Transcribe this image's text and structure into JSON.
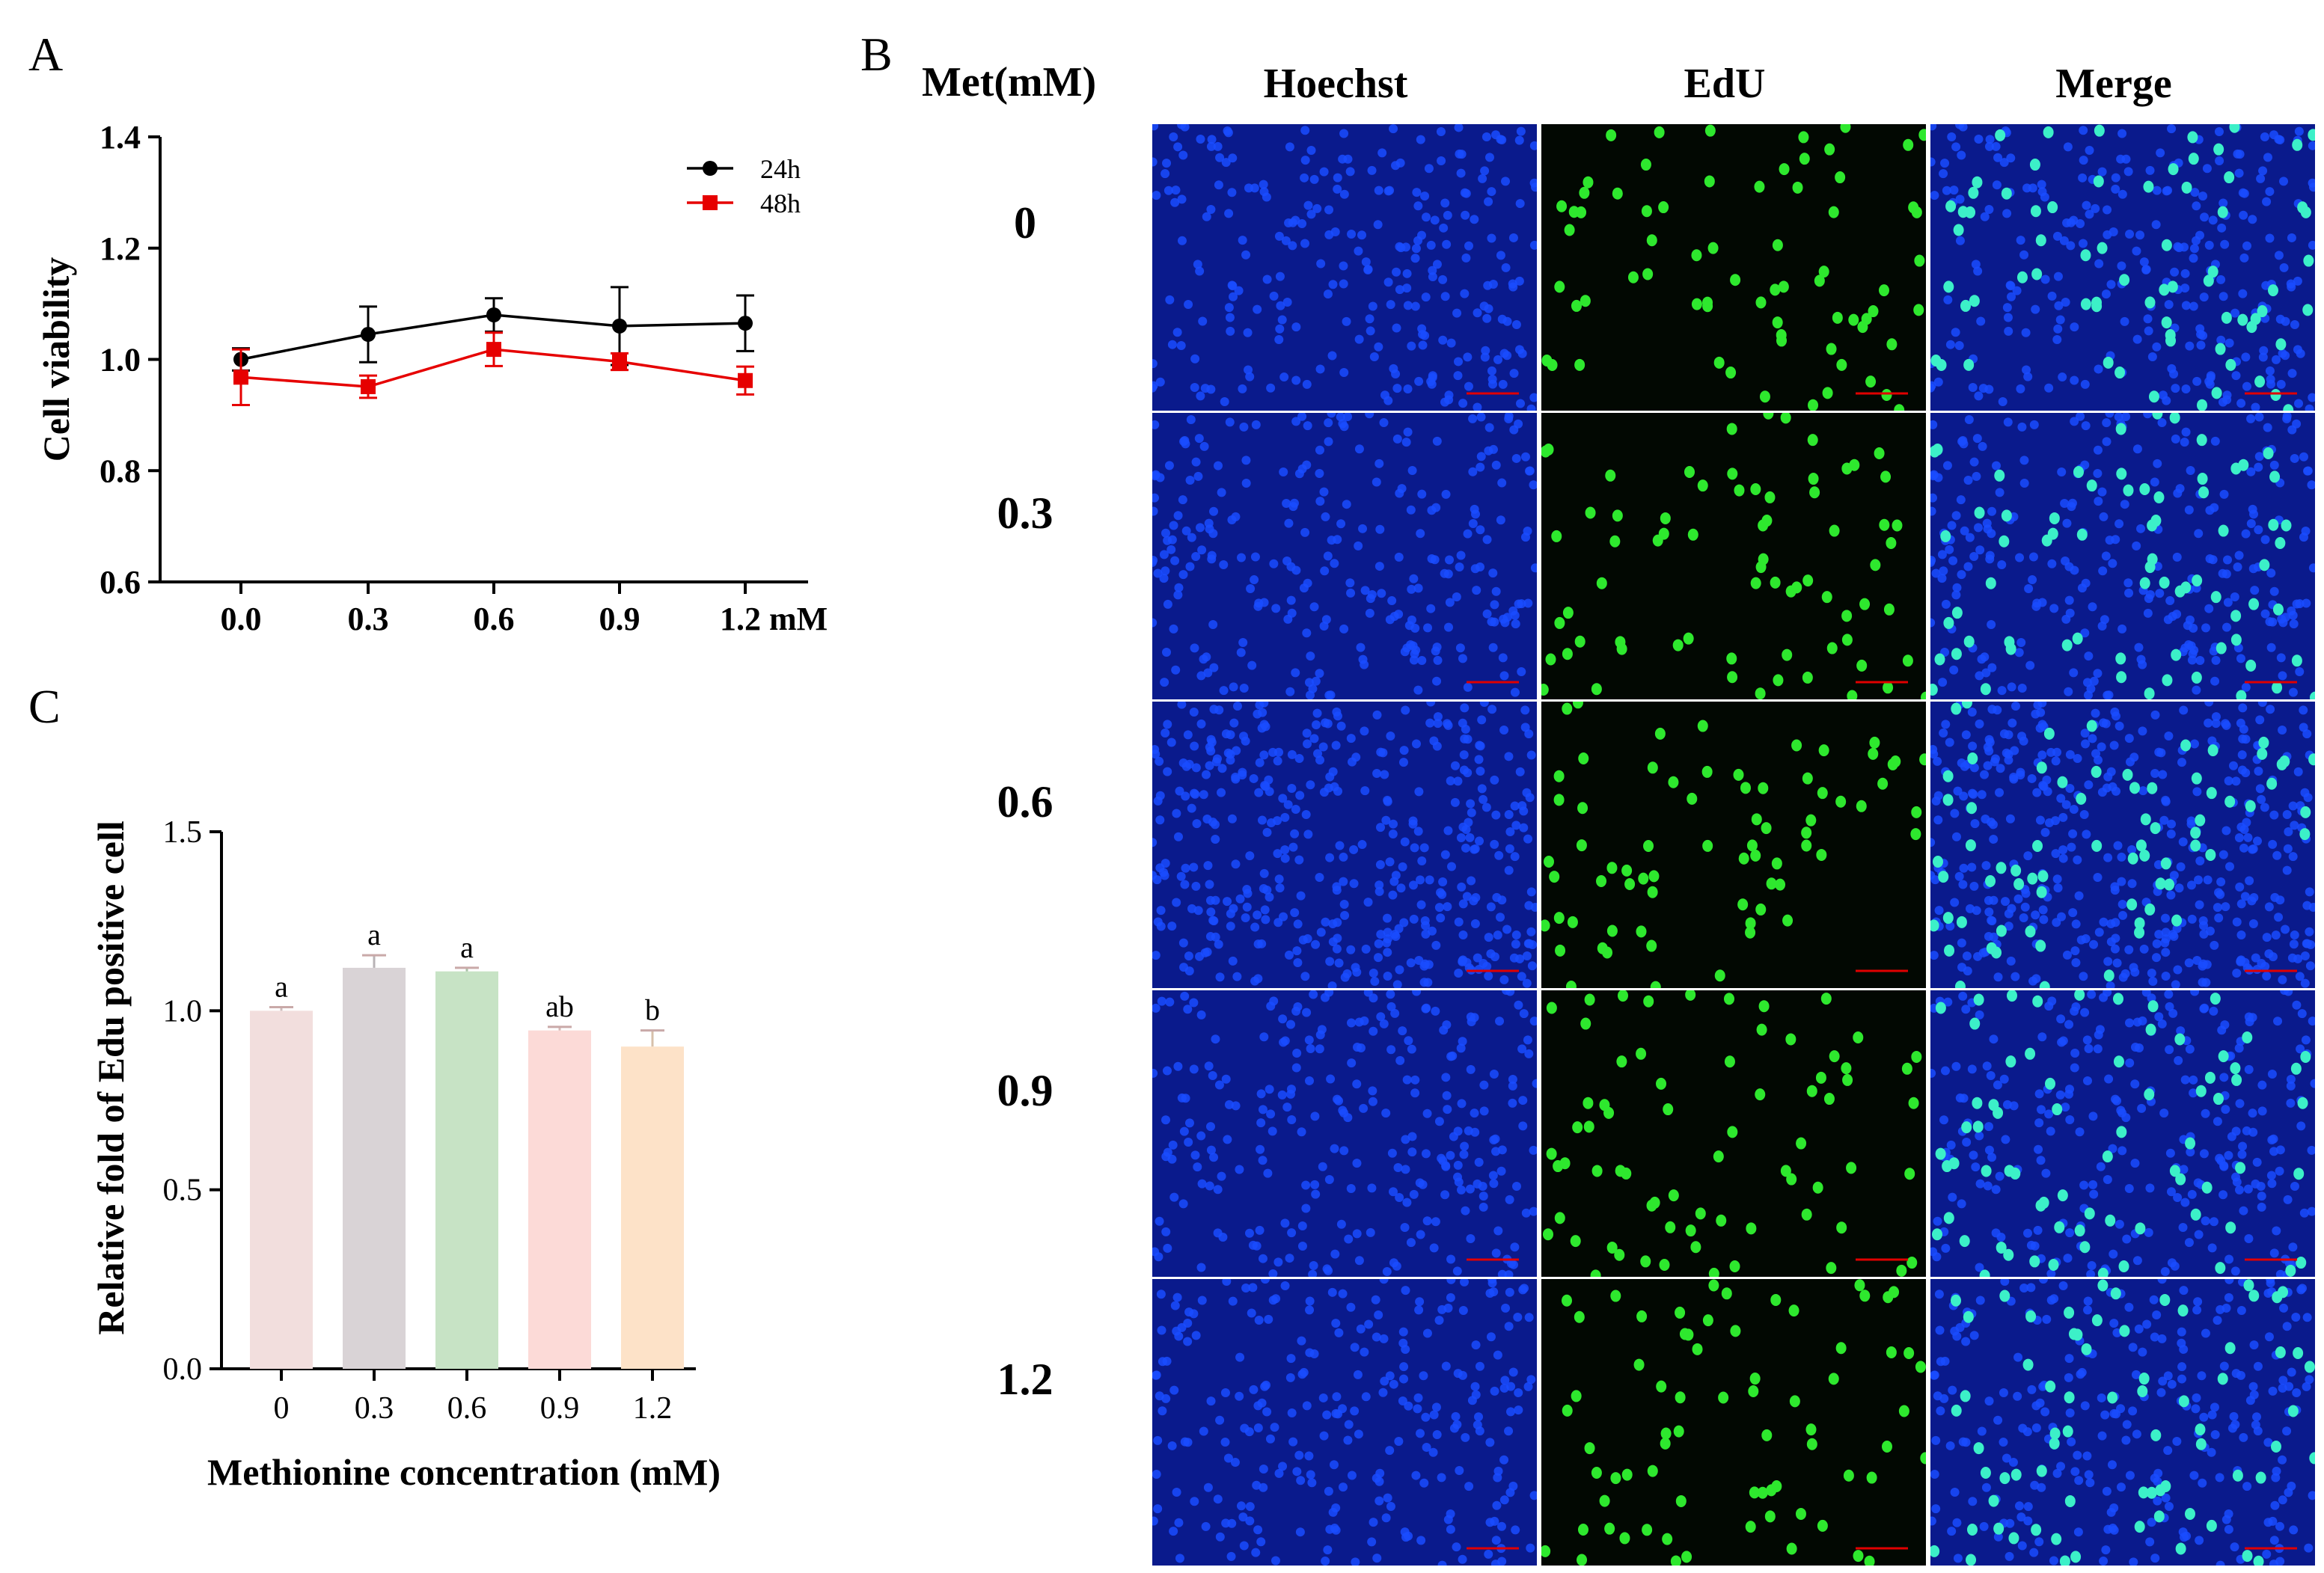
{
  "panels": {
    "a": "A",
    "b": "B",
    "c": "C"
  },
  "chart_data": [
    {
      "id": "A",
      "type": "line",
      "categories": [
        "0.0",
        "0.3",
        "0.6",
        "0.9",
        "1.2 mM"
      ],
      "x": [
        0.0,
        0.3,
        0.6,
        0.9,
        1.2
      ],
      "series": [
        {
          "name": "24h",
          "color": "#000000",
          "marker": "circle",
          "values": [
            1.0,
            1.045,
            1.08,
            1.06,
            1.065
          ],
          "errors": [
            0.02,
            0.05,
            0.03,
            0.07,
            0.05
          ]
        },
        {
          "name": "48h",
          "color": "#e60000",
          "marker": "square",
          "values": [
            0.968,
            0.951,
            1.018,
            0.996,
            0.962
          ],
          "errors": [
            0.05,
            0.02,
            0.03,
            0.015,
            0.025
          ]
        }
      ],
      "ylabel": "Cell viability",
      "xlabel": "",
      "ylim": [
        0.6,
        1.4
      ],
      "yticks": [
        "0.6",
        "0.8",
        "1.0",
        "1.2",
        "1.4"
      ],
      "legend": "top-right"
    },
    {
      "id": "C",
      "type": "bar",
      "categories": [
        "0",
        "0.3",
        "0.6",
        "0.9",
        "1.2"
      ],
      "values": [
        1.0,
        1.12,
        1.11,
        0.945,
        0.9
      ],
      "errors": [
        0.01,
        0.035,
        0.01,
        0.01,
        0.045
      ],
      "letters": [
        "a",
        "a",
        "a",
        "ab",
        "b"
      ],
      "colors": [
        "#f2dedd",
        "#d9d3d6",
        "#c7e3c5",
        "#fcdad7",
        "#fde2c8"
      ],
      "ylabel": "Relative fold of Edu positive cell",
      "xlabel": "Methionine concentration (mM)",
      "ylim": [
        0.0,
        1.5
      ],
      "yticks": [
        "0.0",
        "0.5",
        "1.0",
        "1.5"
      ]
    }
  ],
  "micrographs": {
    "row_header": "Met(mM)",
    "columns": [
      "Hoechst",
      "EdU",
      "Merge"
    ],
    "rows": [
      "0",
      "0.3",
      "0.6",
      "0.9",
      "1.2"
    ],
    "colors": {
      "hoechst_bg": "#0a1a8c",
      "hoechst_cell": "#1a4cff",
      "edu_bg": "#020802",
      "edu_cell": "#2ee82e",
      "merge_cell": "#3cf0c8",
      "scale_bar": "#e00000"
    }
  }
}
